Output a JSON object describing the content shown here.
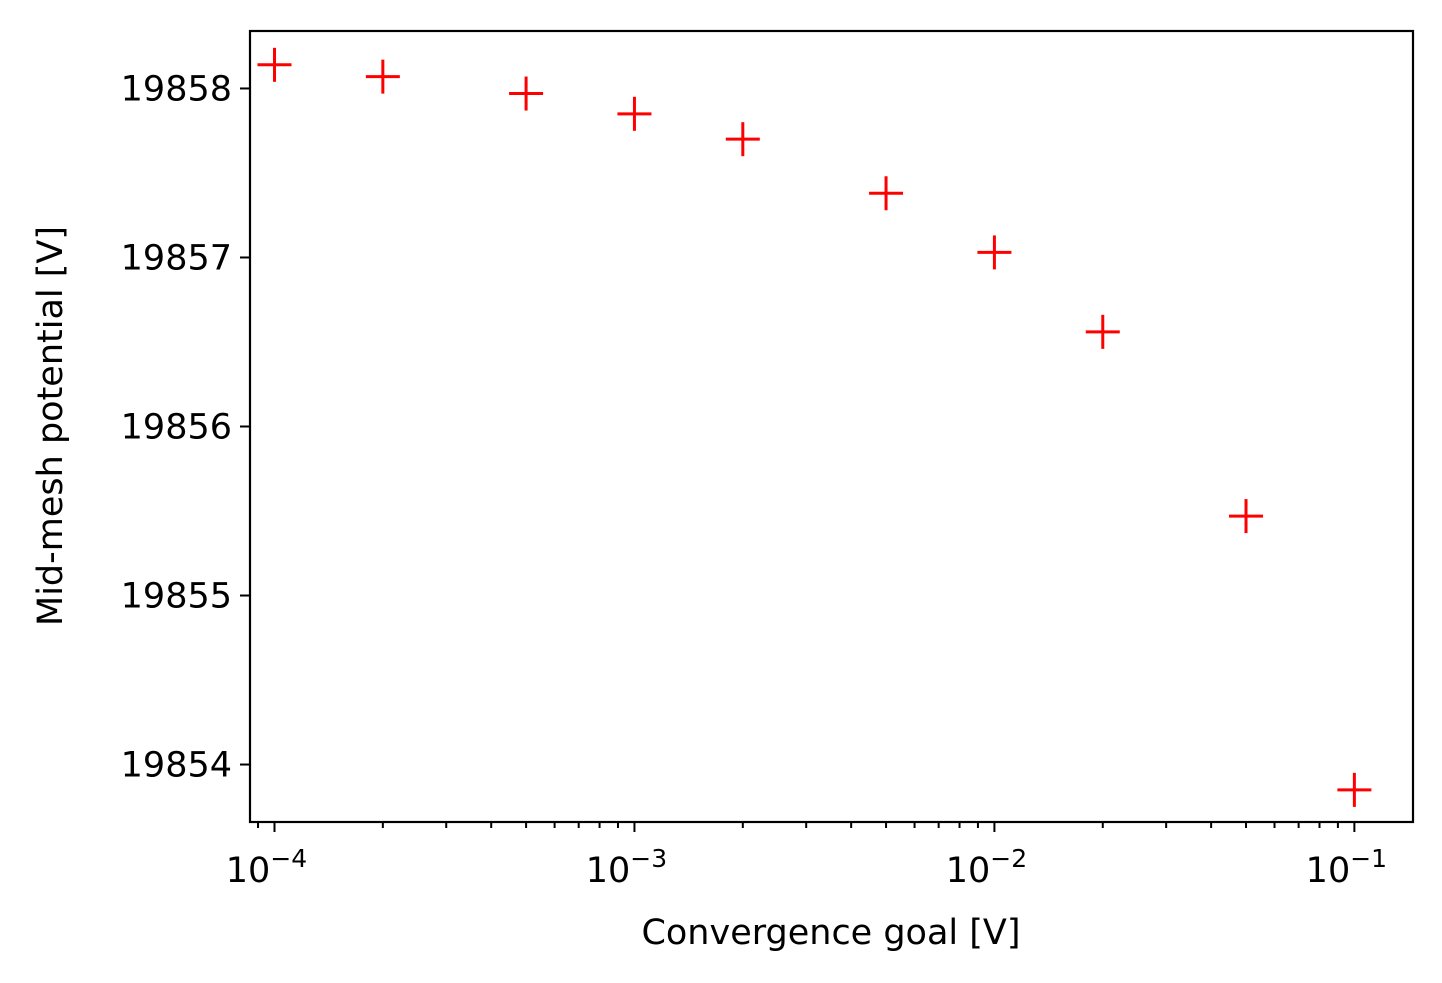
{
  "chart_data": {
    "type": "scatter",
    "xscale": "log",
    "xlabel": "Convergence goal [V]",
    "ylabel": "Mid-mesh potential [V]",
    "xlim": [
      8.55e-05,
      0.1455
    ],
    "ylim": [
      19853.66,
      19858.34
    ],
    "grid": false,
    "marker": "+",
    "series": [
      {
        "color": "#ff0000",
        "points": [
          {
            "x": 0.0001,
            "y": 19858.14
          },
          {
            "x": 0.0002,
            "y": 19858.07
          },
          {
            "x": 0.0005,
            "y": 19857.97
          },
          {
            "x": 0.001,
            "y": 19857.85
          },
          {
            "x": 0.002,
            "y": 19857.7
          },
          {
            "x": 0.005,
            "y": 19857.38
          },
          {
            "x": 0.01,
            "y": 19857.03
          },
          {
            "x": 0.02,
            "y": 19856.56
          },
          {
            "x": 0.05,
            "y": 19855.47
          },
          {
            "x": 0.1,
            "y": 19853.85
          }
        ]
      }
    ],
    "yticks": [
      {
        "value": 19854,
        "label": "19854"
      },
      {
        "value": 19855,
        "label": "19855"
      },
      {
        "value": 19856,
        "label": "19856"
      },
      {
        "value": 19857,
        "label": "19857"
      },
      {
        "value": 19858,
        "label": "19858"
      }
    ],
    "xticks": [
      {
        "value": 0.0001,
        "base": "10",
        "exp": "−4"
      },
      {
        "value": 0.001,
        "base": "10",
        "exp": "−3"
      },
      {
        "value": 0.01,
        "base": "10",
        "exp": "−2"
      },
      {
        "value": 0.1,
        "base": "10",
        "exp": "−1"
      }
    ]
  }
}
